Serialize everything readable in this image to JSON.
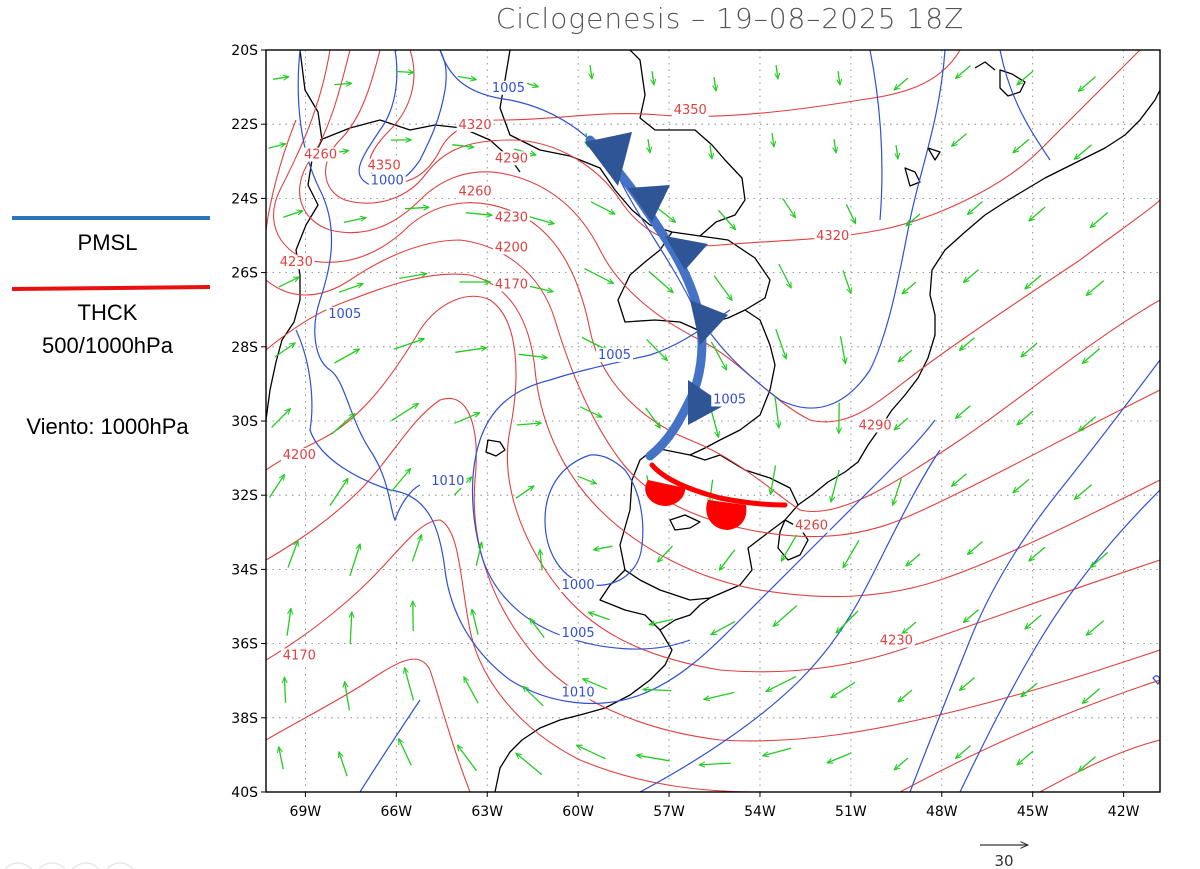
{
  "title": "Ciclogenesis  –  19–08–2025 18Z",
  "legend": {
    "pmsl_label": "PMSL",
    "pmsl_color": "#2e75b6",
    "thck_label_1": "THCK",
    "thck_label_2": "500/1000hPa",
    "thck_color": "#e81010",
    "wind_label": "Viento: 1000hPa"
  },
  "axes": {
    "lat_labels": [
      "20S",
      "22S",
      "24S",
      "26S",
      "28S",
      "30S",
      "32S",
      "34S",
      "36S",
      "38S",
      "40S"
    ],
    "lon_labels": [
      "69W",
      "66W",
      "63W",
      "60W",
      "57W",
      "54W",
      "51W",
      "48W",
      "45W",
      "42W"
    ],
    "lat_range": [
      -40,
      -20
    ],
    "lon_range": [
      -70.3,
      -40.8
    ]
  },
  "wind_reference": "30",
  "colors": {
    "pmsl_contour": "#3050d0",
    "thickness_contour": "#e04040",
    "wind_vectors": "#22cc22",
    "cold_front": "#2f5597",
    "warm_front": "#ff0000"
  },
  "pressure_labels": [
    {
      "text": "1005",
      "lon": -62.3,
      "lat": -21.1
    },
    {
      "text": "1000",
      "lon": -66.3,
      "lat": -23.6
    },
    {
      "text": "1005",
      "lon": -67.7,
      "lat": -27.2
    },
    {
      "text": "1005",
      "lon": -58.8,
      "lat": -28.3
    },
    {
      "text": "1005",
      "lon": -55.0,
      "lat": -29.5
    },
    {
      "text": "1010",
      "lon": -64.3,
      "lat": -31.7
    },
    {
      "text": "1000",
      "lon": -60.0,
      "lat": -34.5
    },
    {
      "text": "1005",
      "lon": -60.0,
      "lat": -35.8
    },
    {
      "text": "1010",
      "lon": -60.0,
      "lat": -37.4
    }
  ],
  "thickness_labels": [
    {
      "text": "4350",
      "lon": -56.3,
      "lat": -21.7
    },
    {
      "text": "4320",
      "lon": -63.4,
      "lat": -22.1
    },
    {
      "text": "4260",
      "lon": -68.5,
      "lat": -22.9
    },
    {
      "text": "4350",
      "lon": -66.4,
      "lat": -23.2
    },
    {
      "text": "4290",
      "lon": -62.2,
      "lat": -23.0
    },
    {
      "text": "4260",
      "lon": -63.4,
      "lat": -23.9
    },
    {
      "text": "4230",
      "lon": -62.2,
      "lat": -24.6
    },
    {
      "text": "4200",
      "lon": -62.2,
      "lat": -25.4
    },
    {
      "text": "4170",
      "lon": -62.2,
      "lat": -26.4
    },
    {
      "text": "4230",
      "lon": -69.3,
      "lat": -25.8
    },
    {
      "text": "4320",
      "lon": -51.6,
      "lat": -25.1
    },
    {
      "text": "4290",
      "lon": -50.2,
      "lat": -30.2
    },
    {
      "text": "4260",
      "lon": -52.3,
      "lat": -32.9
    },
    {
      "text": "4200",
      "lon": -69.2,
      "lat": -31.0
    },
    {
      "text": "4170",
      "lon": -69.2,
      "lat": -36.4
    },
    {
      "text": "4230",
      "lon": -49.5,
      "lat": -36.0
    }
  ]
}
